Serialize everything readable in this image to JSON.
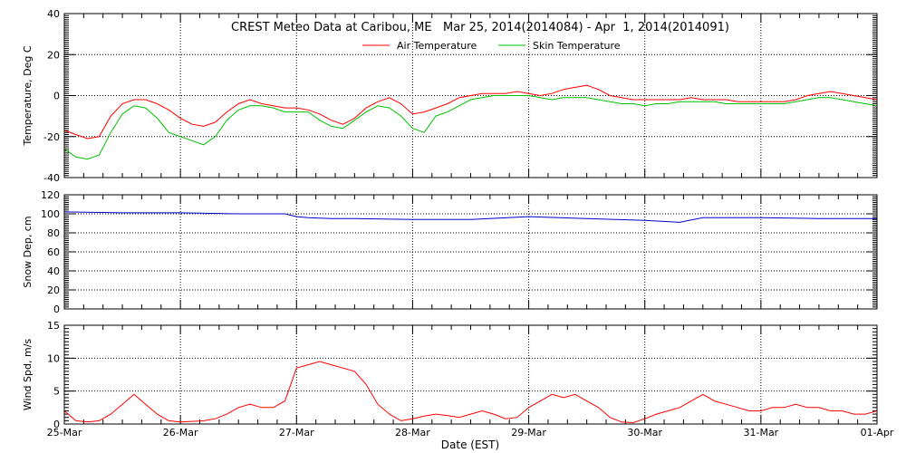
{
  "chart_data": {
    "type": "line",
    "title": "CREST Meteo Data at Caribou, ME   Mar 25, 2014(2014084) - Apr  1, 2014(2014091)",
    "xlabel": "Date (EST)",
    "x_ticks": [
      "25-Mar",
      "26-Mar",
      "27-Mar",
      "28-Mar",
      "29-Mar",
      "30-Mar",
      "31-Mar",
      "01-Apr"
    ],
    "xlim": [
      0,
      7
    ],
    "x_unit": "days since 25-Mar 00:00 EST",
    "grid": true,
    "panels": [
      {
        "ylabel": "Temperature, Deg C",
        "ylim": [
          -40,
          40
        ],
        "yticks": [
          "-40",
          "-20",
          "0",
          "20",
          "40"
        ],
        "yticks_values": [
          -40,
          -20,
          0,
          20,
          40
        ],
        "legend": "top-center",
        "series": [
          {
            "name": "Air Temperature",
            "color": "#ff0000",
            "x": [
              0,
              0.1,
              0.2,
              0.3,
              0.4,
              0.5,
              0.6,
              0.7,
              0.8,
              0.9,
              1.0,
              1.1,
              1.2,
              1.3,
              1.4,
              1.5,
              1.6,
              1.7,
              1.8,
              1.9,
              2.0,
              2.1,
              2.2,
              2.3,
              2.4,
              2.5,
              2.6,
              2.7,
              2.8,
              2.9,
              3.0,
              3.1,
              3.2,
              3.3,
              3.4,
              3.5,
              3.6,
              3.7,
              3.8,
              3.9,
              4.0,
              4.1,
              4.2,
              4.3,
              4.4,
              4.5,
              4.6,
              4.7,
              4.8,
              4.9,
              5.0,
              5.1,
              5.2,
              5.3,
              5.4,
              5.5,
              5.6,
              5.7,
              5.8,
              5.9,
              6.0,
              6.1,
              6.2,
              6.3,
              6.4,
              6.5,
              6.6,
              6.7,
              6.8,
              6.9,
              7.0
            ],
            "y": [
              -17,
              -19,
              -21,
              -20,
              -10,
              -4,
              -2,
              -2,
              -4,
              -7,
              -11,
              -14,
              -15,
              -13,
              -8,
              -4,
              -2,
              -4,
              -5,
              -6,
              -6,
              -7,
              -9,
              -12,
              -14,
              -11,
              -6,
              -3,
              -1,
              -4,
              -9,
              -8,
              -6,
              -4,
              -1,
              0,
              1,
              1,
              1,
              2,
              1,
              0,
              1,
              3,
              4,
              5,
              3,
              0,
              -1,
              -2,
              -2,
              -2,
              -2,
              -2,
              -1,
              -2,
              -2,
              -2,
              -3,
              -3,
              -3,
              -3,
              -3,
              -2,
              0,
              1,
              2,
              1,
              0,
              -1,
              -2
            ]
          },
          {
            "name": "Skin Temperature",
            "color": "#00c000",
            "x": [
              0,
              0.1,
              0.2,
              0.3,
              0.4,
              0.5,
              0.6,
              0.7,
              0.8,
              0.9,
              1.0,
              1.1,
              1.2,
              1.3,
              1.4,
              1.5,
              1.6,
              1.7,
              1.8,
              1.9,
              2.0,
              2.1,
              2.2,
              2.3,
              2.4,
              2.5,
              2.6,
              2.7,
              2.8,
              2.9,
              3.0,
              3.1,
              3.2,
              3.3,
              3.4,
              3.5,
              3.6,
              3.7,
              3.8,
              3.9,
              4.0,
              4.1,
              4.2,
              4.3,
              4.4,
              4.5,
              4.6,
              4.7,
              4.8,
              4.9,
              5.0,
              5.1,
              5.2,
              5.3,
              5.4,
              5.5,
              5.6,
              5.7,
              5.8,
              5.9,
              6.0,
              6.1,
              6.2,
              6.3,
              6.4,
              6.5,
              6.6,
              6.7,
              6.8,
              6.9,
              7.0
            ],
            "y": [
              -26,
              -30,
              -31,
              -29,
              -18,
              -9,
              -5,
              -6,
              -11,
              -18,
              -20,
              -22,
              -24,
              -20,
              -12,
              -7,
              -5,
              -5,
              -6,
              -8,
              -8,
              -8,
              -12,
              -15,
              -16,
              -12,
              -8,
              -5,
              -6,
              -10,
              -16,
              -18,
              -10,
              -8,
              -5,
              -2,
              -1,
              0,
              0,
              0,
              0,
              -1,
              -2,
              -1,
              -1,
              -1,
              -2,
              -3,
              -4,
              -4,
              -5,
              -4,
              -4,
              -3,
              -3,
              -3,
              -3,
              -4,
              -4,
              -4,
              -4,
              -4,
              -4,
              -3,
              -2,
              -1,
              -1,
              -2,
              -3,
              -4,
              -5
            ]
          }
        ]
      },
      {
        "ylabel": "Snow Dep, cm",
        "ylim": [
          0,
          120
        ],
        "yticks": [
          "0",
          "20",
          "40",
          "60",
          "80",
          "100",
          "120"
        ],
        "yticks_values": [
          0,
          20,
          40,
          60,
          80,
          100,
          120
        ],
        "series": [
          {
            "name": "",
            "color": "#0000cc",
            "x": [
              0,
              0.5,
              1.0,
              1.5,
              1.9,
              2.0,
              2.1,
              2.3,
              2.5,
              3.0,
              3.5,
              4.0,
              4.5,
              5.0,
              5.3,
              5.5,
              6.0,
              6.5,
              7.0
            ],
            "y": [
              102,
              101,
              101,
              100,
              100,
              97,
              96,
              95,
              95,
              94,
              94,
              97,
              95,
              93,
              91,
              96,
              96,
              95,
              95
            ]
          }
        ]
      },
      {
        "ylabel": "Wind Spd, m/s",
        "ylim": [
          0,
          15
        ],
        "yticks": [
          "0",
          "5",
          "10",
          "15"
        ],
        "yticks_values": [
          0,
          5,
          10,
          15
        ],
        "series": [
          {
            "name": "",
            "color": "#ff0000",
            "x": [
              0,
              0.1,
              0.2,
              0.3,
              0.4,
              0.5,
              0.6,
              0.7,
              0.8,
              0.9,
              1.0,
              1.1,
              1.2,
              1.3,
              1.4,
              1.5,
              1.6,
              1.7,
              1.8,
              1.9,
              1.95,
              2.0,
              2.1,
              2.2,
              2.3,
              2.4,
              2.5,
              2.6,
              2.7,
              2.8,
              2.9,
              3.0,
              3.1,
              3.2,
              3.3,
              3.4,
              3.5,
              3.6,
              3.7,
              3.8,
              3.9,
              4.0,
              4.1,
              4.2,
              4.3,
              4.4,
              4.5,
              4.6,
              4.7,
              4.8,
              4.9,
              5.0,
              5.1,
              5.2,
              5.3,
              5.4,
              5.5,
              5.6,
              5.7,
              5.8,
              5.9,
              6.0,
              6.1,
              6.2,
              6.3,
              6.4,
              6.5,
              6.6,
              6.7,
              6.8,
              6.9,
              7.0
            ],
            "y": [
              2,
              0.5,
              0.3,
              0.5,
              1.5,
              3,
              4.5,
              3,
              1.5,
              0.5,
              0.3,
              0.4,
              0.5,
              0.8,
              1.5,
              2.5,
              3,
              2.5,
              2.5,
              3.5,
              6,
              8.5,
              9,
              9.5,
              9,
              8.5,
              8,
              6,
              3,
              1.5,
              0.5,
              0.8,
              1.2,
              1.5,
              1.3,
              1,
              1.5,
              2,
              1.5,
              0.8,
              1,
              2.5,
              3.5,
              4.5,
              4,
              4.5,
              3.5,
              2.5,
              1,
              0.3,
              0.2,
              0.8,
              1.5,
              2,
              2.5,
              3.5,
              4.5,
              3.5,
              3,
              2.5,
              2,
              2,
              2.5,
              2.5,
              3,
              2.5,
              2.5,
              2,
              2,
              1.5,
              1.5,
              2
            ]
          }
        ]
      }
    ]
  }
}
